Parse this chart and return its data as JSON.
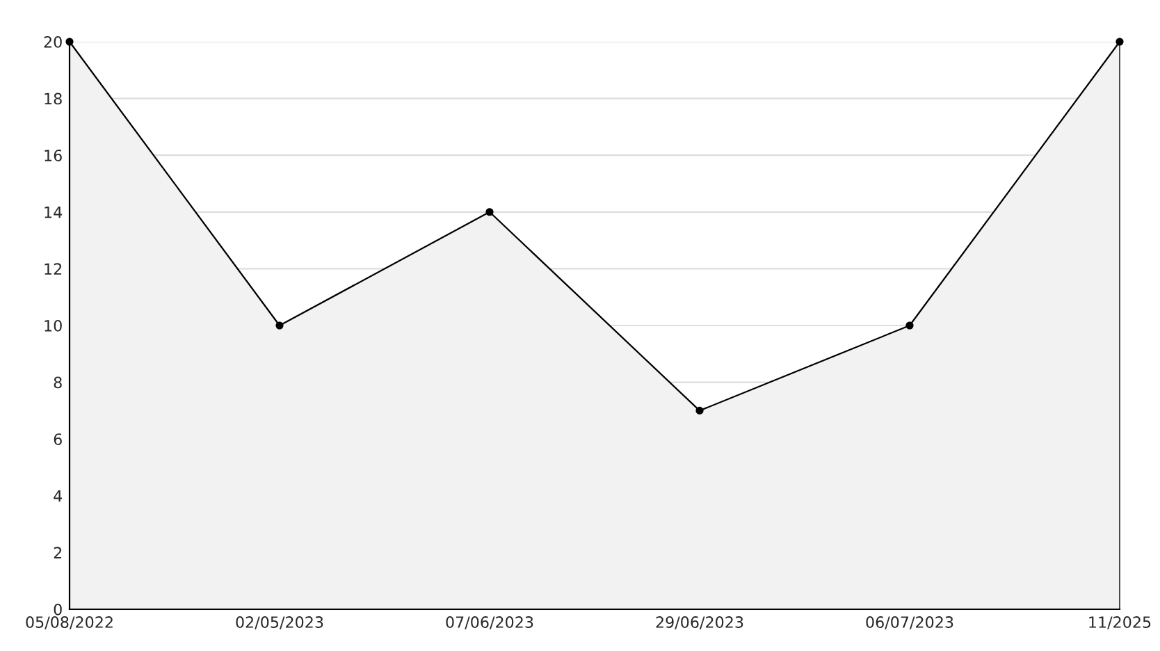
{
  "chart_data": {
    "type": "area",
    "categories": [
      "05/08/2022",
      "02/05/2023",
      "07/06/2023",
      "29/06/2023",
      "06/07/2023",
      "11/2025"
    ],
    "series": [
      {
        "color": "#f2f2f2",
        "values": [
          20,
          10,
          14,
          7,
          10,
          20
        ]
      }
    ],
    "ylim": [
      0,
      20
    ],
    "yticks": [
      0,
      2,
      4,
      6,
      8,
      10,
      12,
      14,
      16,
      18,
      20
    ],
    "grid": "y",
    "marker": "circle",
    "line_style": "solid",
    "legend": false
  }
}
